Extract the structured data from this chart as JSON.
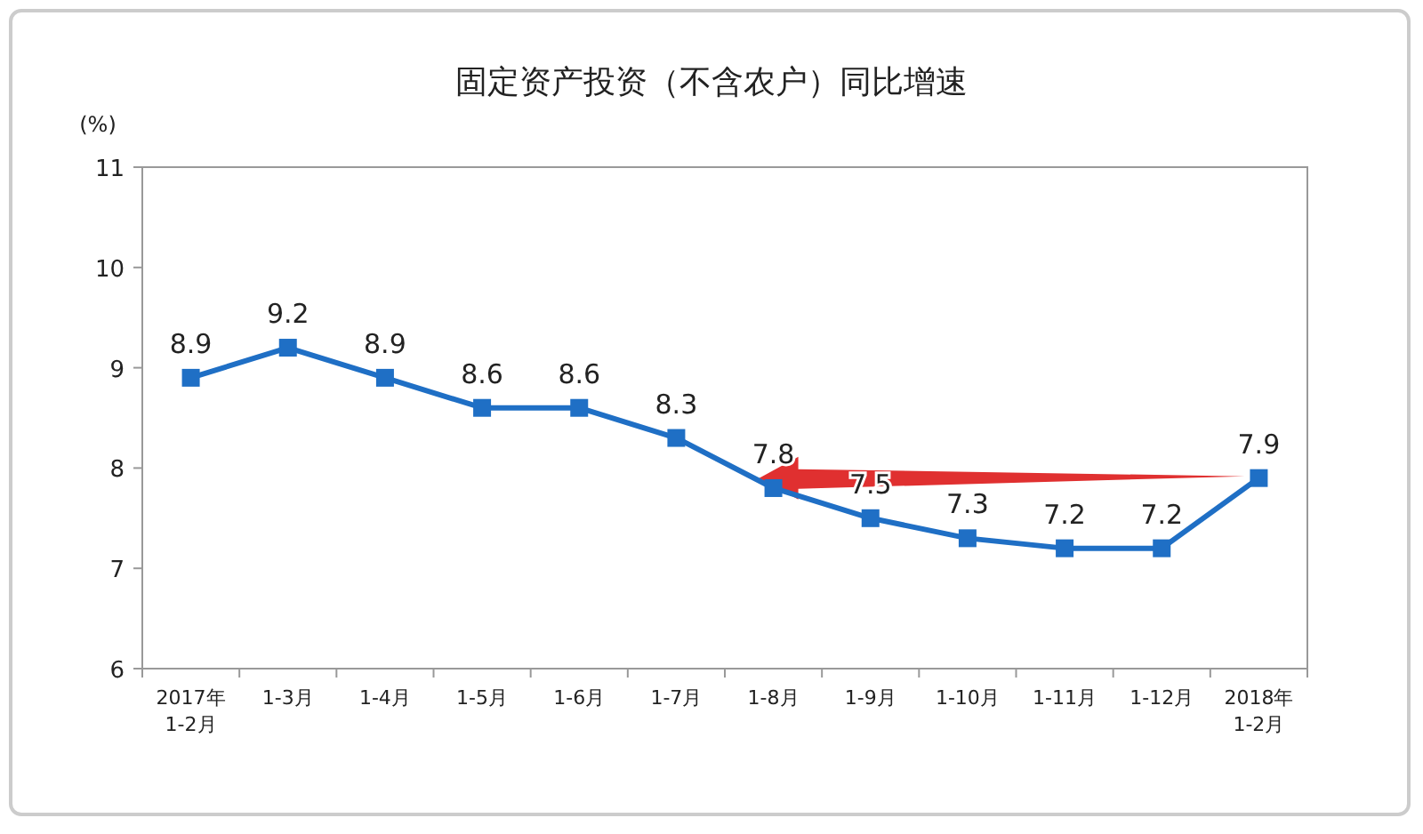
{
  "chart_data": {
    "type": "line",
    "title": "固定资产投资（不含农户）同比增速",
    "ylabel": "(%)",
    "categories": [
      "2017年 1-2月",
      "1-3月",
      "1-4月",
      "1-5月",
      "1-6月",
      "1-7月",
      "1-8月",
      "1-9月",
      "1-10月",
      "1-11月",
      "1-12月",
      "2018年 1-2月"
    ],
    "series": [
      {
        "color": "#1f6fc5",
        "values": [
          8.9,
          9.2,
          8.9,
          8.6,
          8.6,
          8.3,
          7.8,
          7.5,
          7.3,
          7.2,
          7.2,
          7.9
        ]
      }
    ],
    "ylim": [
      6,
      11
    ],
    "yticks": [
      6,
      7,
      8,
      9,
      10,
      11
    ],
    "data_labels": true,
    "marker": "square",
    "line_style": "solid",
    "grid": false
  }
}
